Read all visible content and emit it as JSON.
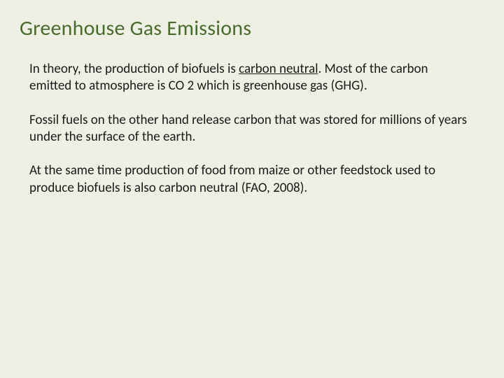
{
  "slide": {
    "title": "Greenhouse Gas Emissions",
    "background_color": "#eef0e3",
    "title_color": "#4a6b2e",
    "title_fontsize": 30,
    "body_fontsize": 19,
    "body_color": "#1a1a1a",
    "paragraphs": [
      {
        "pre": "In theory, the production of biofuels is ",
        "underlined": "carbon neutral",
        "post": ". Most of the carbon emitted to atmosphere is CO 2 which is greenhouse gas (GHG)."
      },
      {
        "pre": "Fossil fuels on the other hand release carbon that was stored for millions of years under the surface of the earth.",
        "underlined": "",
        "post": ""
      },
      {
        "pre": "At the same time production of food from maize or other feedstock used to produce biofuels is also carbon neutral (FAO, 2008).",
        "underlined": "",
        "post": ""
      }
    ]
  }
}
